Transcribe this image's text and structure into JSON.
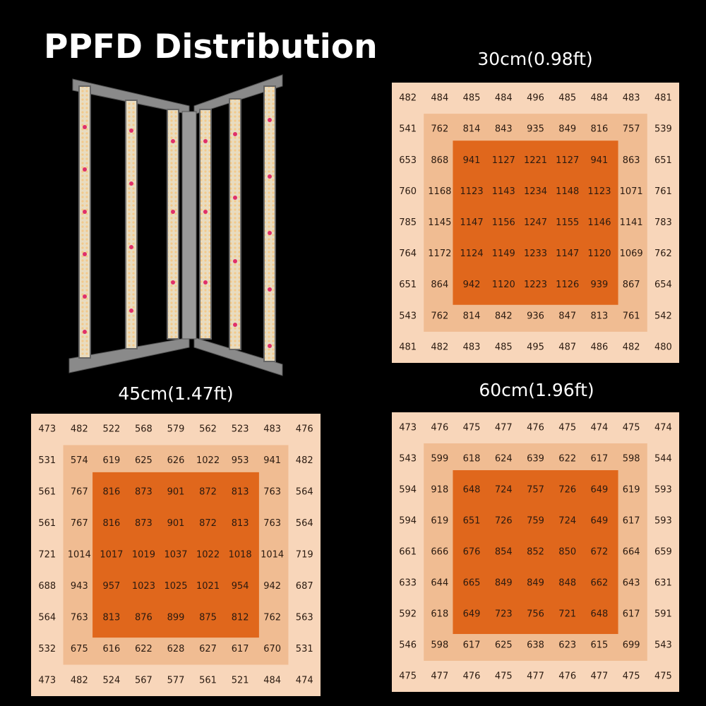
{
  "title": "PPFD Distribution",
  "panels": [
    {
      "label": "30cm(0.98ft)",
      "rows": [
        [
          482,
          484,
          485,
          484,
          496,
          485,
          484,
          483,
          481
        ],
        [
          541,
          762,
          814,
          843,
          935,
          849,
          816,
          757,
          539
        ],
        [
          653,
          868,
          941,
          1127,
          1221,
          1127,
          941,
          863,
          651
        ],
        [
          760,
          1168,
          1123,
          1143,
          1234,
          1148,
          1123,
          1071,
          761
        ],
        [
          785,
          1145,
          1147,
          1156,
          1247,
          1155,
          1146,
          1141,
          783
        ],
        [
          764,
          1172,
          1124,
          1149,
          1233,
          1147,
          1120,
          1069,
          762
        ],
        [
          651,
          864,
          942,
          1120,
          1223,
          1126,
          939,
          867,
          654
        ],
        [
          543,
          762,
          814,
          842,
          936,
          847,
          813,
          761,
          542
        ],
        [
          481,
          482,
          483,
          485,
          495,
          487,
          486,
          482,
          480
        ]
      ]
    },
    {
      "label": "45cm(1.47ft)",
      "rows": [
        [
          473,
          482,
          522,
          568,
          579,
          562,
          523,
          483,
          476
        ],
        [
          531,
          574,
          619,
          625,
          626,
          1022,
          953,
          941,
          482
        ],
        [
          561,
          767,
          816,
          873,
          901,
          872,
          813,
          763,
          564
        ],
        [
          561,
          767,
          816,
          873,
          901,
          872,
          813,
          763,
          564
        ],
        [
          721,
          1014,
          1017,
          1019,
          1037,
          1022,
          1018,
          1014,
          719
        ],
        [
          688,
          943,
          957,
          1023,
          1025,
          1021,
          954,
          942,
          687
        ],
        [
          564,
          763,
          813,
          876,
          899,
          875,
          812,
          762,
          563
        ],
        [
          532,
          675,
          616,
          622,
          628,
          627,
          617,
          670,
          531
        ],
        [
          473,
          482,
          524,
          567,
          577,
          561,
          521,
          484,
          474
        ]
      ]
    },
    {
      "label": "60cm(1.96ft)",
      "rows": [
        [
          473,
          476,
          475,
          477,
          476,
          475,
          474,
          475,
          474
        ],
        [
          543,
          599,
          618,
          624,
          639,
          622,
          617,
          598,
          544
        ],
        [
          594,
          918,
          648,
          724,
          757,
          726,
          649,
          619,
          593
        ],
        [
          594,
          619,
          651,
          726,
          759,
          724,
          649,
          617,
          593
        ],
        [
          661,
          666,
          676,
          854,
          852,
          850,
          672,
          664,
          659
        ],
        [
          633,
          644,
          665,
          849,
          849,
          848,
          662,
          643,
          631
        ],
        [
          592,
          618,
          649,
          723,
          756,
          721,
          648,
          617,
          591
        ],
        [
          546,
          598,
          617,
          625,
          638,
          623,
          615,
          699,
          543
        ],
        [
          475,
          477,
          476,
          475,
          477,
          476,
          477,
          475,
          475
        ]
      ]
    }
  ]
}
